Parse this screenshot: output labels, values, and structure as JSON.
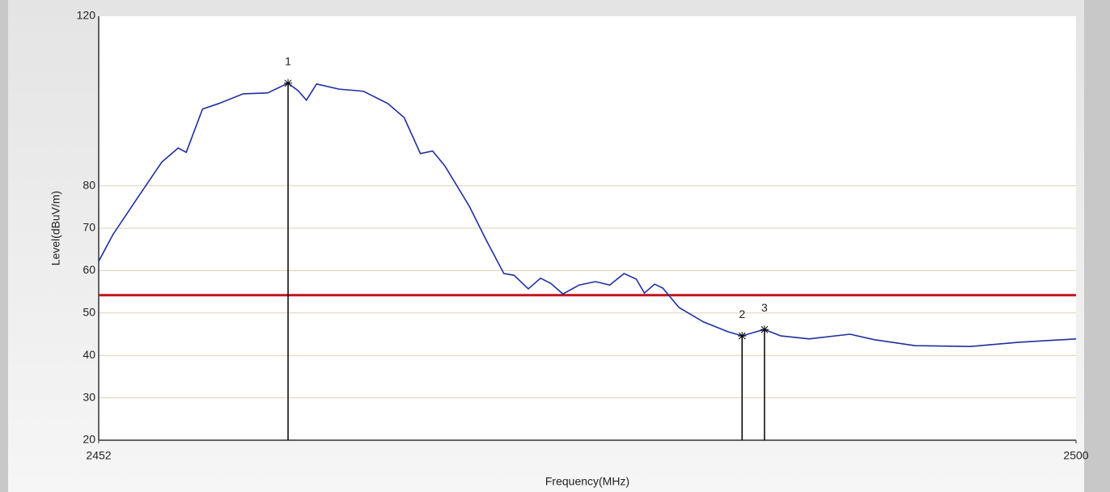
{
  "chart_data": {
    "type": "line",
    "xlabel": "Frequency(MHz)",
    "ylabel": "Level(dBuV/m)",
    "x": [
      2452,
      2452.7,
      2453.9,
      2455.1,
      2455.9,
      2456.3,
      2457.1,
      2457.9,
      2459.1,
      2460.3,
      2461.3,
      2461.8,
      2462.2,
      2462.7,
      2463.8,
      2465.0,
      2466.2,
      2467.0,
      2467.8,
      2468.4,
      2469.0,
      2470.2,
      2471.0,
      2471.9,
      2472.4,
      2473.1,
      2473.7,
      2474.2,
      2474.8,
      2475.6,
      2476.4,
      2477.1,
      2477.8,
      2478.4,
      2478.8,
      2479.3,
      2479.7,
      2480.5,
      2481.7,
      2482.9,
      2483.6,
      2484.3,
      2484.7,
      2485.5,
      2486.9,
      2488.9,
      2490.1,
      2492.1,
      2494.8,
      2497.2,
      2500.0
    ],
    "values": [
      62.2,
      68.5,
      77.1,
      85.6,
      88.9,
      87.9,
      98.1,
      99.4,
      101.7,
      101.9,
      104.2,
      102.4,
      100.2,
      104.0,
      102.8,
      102.3,
      99.4,
      96.1,
      87.6,
      88.2,
      84.7,
      75.2,
      67.5,
      59.3,
      58.9,
      55.7,
      58.2,
      57.0,
      54.5,
      56.6,
      57.4,
      56.6,
      59.3,
      58.0,
      54.7,
      56.8,
      55.9,
      51.3,
      47.9,
      45.6,
      44.6,
      45.6,
      46.1,
      44.6,
      43.9,
      45.0,
      43.7,
      42.3,
      42.1,
      43.1,
      43.9
    ],
    "color": "#1f2fa0",
    "limit": 54.2,
    "limit_color": "#c0141e",
    "markers": [
      {
        "label": "1",
        "x": 2461.3,
        "value": 104.2
      },
      {
        "label": "2",
        "x": 2483.6,
        "value": 44.6
      },
      {
        "label": "3",
        "x": 2484.7,
        "value": 46.1
      }
    ],
    "xlim": [
      2452,
      2500
    ],
    "xticks": [
      2452,
      2500
    ],
    "ylim": [
      20,
      120
    ],
    "yticks": [
      20,
      30,
      40,
      50,
      60,
      70,
      80,
      120
    ],
    "grid": true
  }
}
